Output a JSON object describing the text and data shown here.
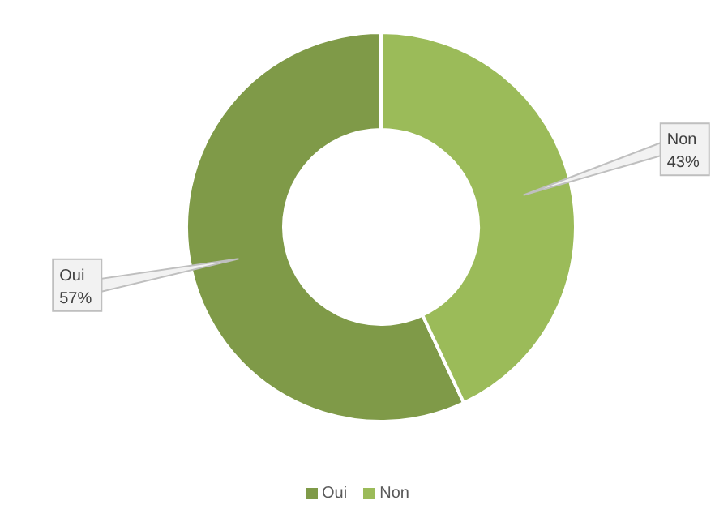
{
  "chart_data": {
    "type": "donut",
    "categories": [
      "Oui",
      "Non"
    ],
    "values": [
      57,
      43
    ],
    "colors": [
      "#7f9a48",
      "#9bbb59"
    ],
    "value_labels": [
      "57%",
      "43%"
    ],
    "legend": "bottom"
  }
}
